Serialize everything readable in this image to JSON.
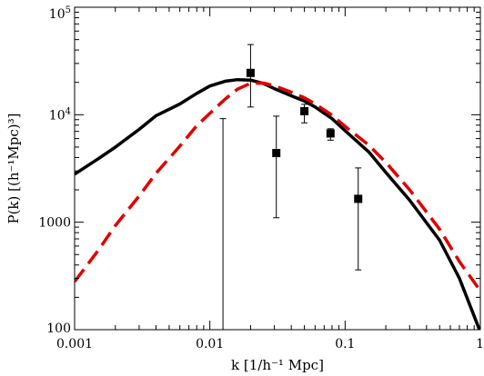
{
  "chart_data": {
    "type": "line",
    "xscale": "log",
    "yscale": "log",
    "xlim": [
      0.001,
      1
    ],
    "ylim": [
      100,
      100000
    ],
    "xlabel": "k [1/h⁻¹ Mpc]",
    "ylabel": "P(k) [(h⁻¹Mpc)³]",
    "x_ticks": [
      {
        "value": 0.001,
        "label": "0.001"
      },
      {
        "value": 0.01,
        "label": "0.01"
      },
      {
        "value": 0.1,
        "label": "0.1"
      },
      {
        "value": 1,
        "label": "1"
      }
    ],
    "y_ticks": [
      {
        "value": 100,
        "label": "100"
      },
      {
        "value": 1000,
        "label": "1000"
      },
      {
        "value": 10000,
        "label": "10",
        "exp": "4"
      },
      {
        "value": 100000,
        "label": "10",
        "exp": "5"
      }
    ],
    "grid": false,
    "legend": "none",
    "series": [
      {
        "style": "solid",
        "color": "#000000",
        "x": [
          0.001,
          0.0015,
          0.002,
          0.003,
          0.004,
          0.006,
          0.008,
          0.01,
          0.013,
          0.016,
          0.02,
          0.025,
          0.03,
          0.04,
          0.05,
          0.06,
          0.08,
          0.1,
          0.15,
          0.2,
          0.3,
          0.5,
          0.7,
          1.0
        ],
        "y": [
          2800,
          3900,
          5000,
          7300,
          9800,
          12600,
          15800,
          18500,
          20500,
          21200,
          21000,
          19500,
          17500,
          15000,
          13400,
          11800,
          9200,
          7100,
          4500,
          2900,
          1600,
          680,
          300,
          95
        ]
      },
      {
        "style": "dashed",
        "color": "#e00000",
        "x": [
          0.001,
          0.0015,
          0.002,
          0.003,
          0.004,
          0.006,
          0.008,
          0.01,
          0.013,
          0.016,
          0.02,
          0.025,
          0.03,
          0.04,
          0.05,
          0.06,
          0.08,
          0.1,
          0.15,
          0.2,
          0.3,
          0.5,
          0.7,
          1.0
        ],
        "y": [
          280,
          550,
          930,
          1750,
          2850,
          5100,
          7900,
          10300,
          14000,
          17300,
          19600,
          19700,
          18600,
          16200,
          14400,
          12600,
          9900,
          7800,
          5200,
          3600,
          2000,
          860,
          430,
          230
        ]
      },
      {
        "style": "markers",
        "marker": "square",
        "color": "#000000",
        "x": [
          0.02,
          0.031,
          0.05,
          0.078,
          0.125
        ],
        "y": [
          24500,
          4400,
          10800,
          6700,
          1650
        ],
        "err_lo": [
          11800,
          1100,
          8400,
          5800,
          360
        ],
        "err_hi": [
          45000,
          9700,
          12500,
          7400,
          3200
        ]
      },
      {
        "style": "errorbar-only",
        "color": "#000000",
        "x": [
          0.0125
        ],
        "err_lo": [
          100
        ],
        "err_hi": [
          9200
        ]
      }
    ]
  }
}
